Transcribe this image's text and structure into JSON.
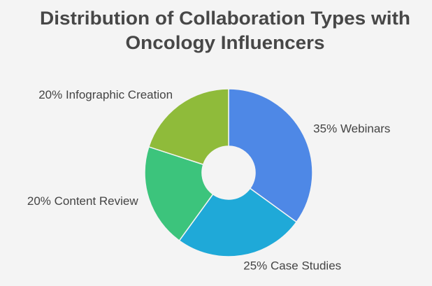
{
  "chart_data": {
    "type": "donut",
    "title": [
      "Distribution of Collaboration Types with",
      "Oncology Influencers"
    ],
    "categories": [
      "Webinars",
      "Case Studies",
      "Content Review",
      "Infographic Creation"
    ],
    "values": [
      35,
      25,
      20,
      20
    ],
    "value_labels": [
      "35%",
      "25%",
      "20%",
      "20%"
    ],
    "colors": [
      "#4e88e6",
      "#1fa9d8",
      "#3cc47c",
      "#8fbb3a"
    ]
  }
}
